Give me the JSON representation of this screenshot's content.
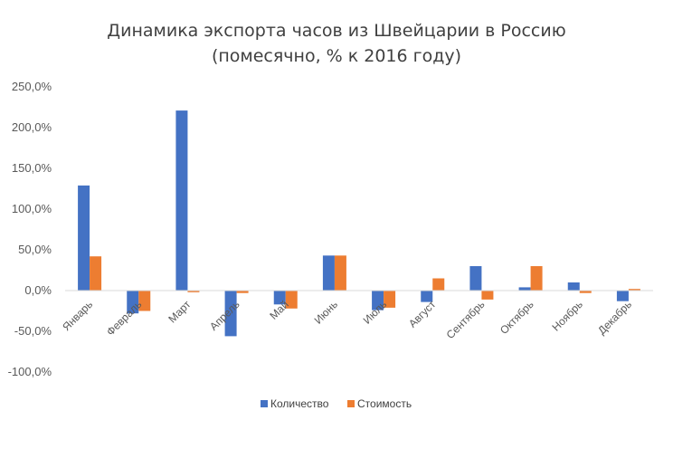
{
  "chart_data": {
    "type": "bar",
    "title_lines": [
      "Динамика экспорта часов из Швейцарии в Россию",
      "(помесячно, % к 2016 году)"
    ],
    "categories": [
      "Январь",
      "Февраль",
      "Март",
      "Апрель",
      "Май",
      "Июнь",
      "Июль",
      "Август",
      "Сентябрь",
      "Октябрь",
      "Ноябрь",
      "Декабрь"
    ],
    "series": [
      {
        "name": "Количество",
        "color": "#4472C4",
        "values": [
          129,
          -28,
          221,
          -56,
          -17,
          43,
          -24,
          -14,
          30,
          4,
          10,
          -13
        ]
      },
      {
        "name": "Стоимость",
        "color": "#ED7D31",
        "values": [
          42,
          -25,
          -2,
          -3,
          -22,
          43,
          -21,
          15,
          -11,
          30,
          -3,
          2
        ]
      }
    ],
    "ylim": [
      -100,
      250
    ],
    "y_ticks": [
      "-100,0%",
      "-50,0%",
      "0,0%",
      "50,0%",
      "100,0%",
      "150,0%",
      "200,0%",
      "250,0%"
    ],
    "y_tick_values": [
      -100,
      -50,
      0,
      50,
      100,
      150,
      200,
      250
    ],
    "grid": false,
    "legend_position": "bottom"
  }
}
